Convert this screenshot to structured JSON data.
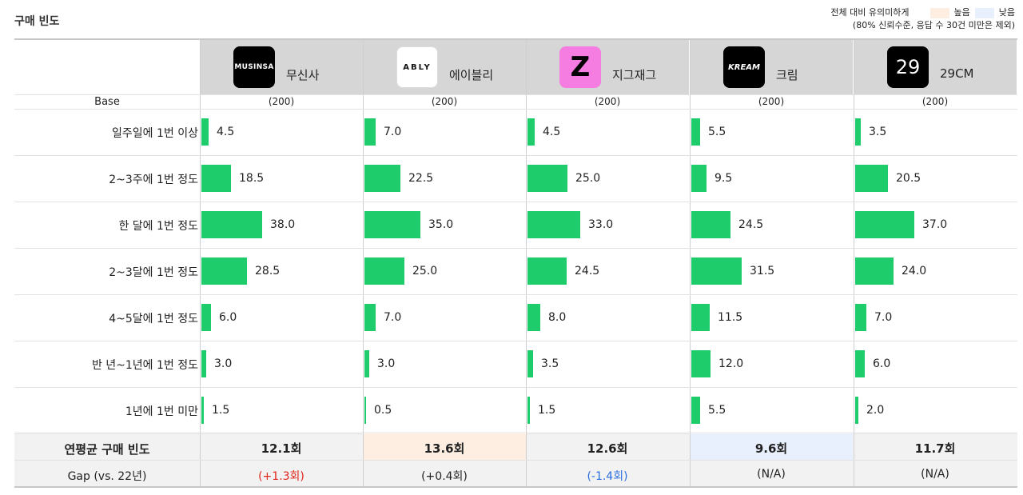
{
  "title": "구매 빈도",
  "legend": {
    "label": "전체 대비 유의미하게",
    "high_label": "높음",
    "low_label": "낮음",
    "note": "(80% 신뢰수준, 응답 수 30건 미만은 제외)",
    "high_color": "#fdeee1",
    "low_color": "#e8effd"
  },
  "brands": [
    {
      "logo_text": "MUSINSA",
      "logo_class": "musinsa",
      "name": "무신사",
      "base": "(200)"
    },
    {
      "logo_text": "ABLY",
      "logo_class": "ably",
      "name": "에이블리",
      "base": "(200)"
    },
    {
      "logo_text": "Z",
      "logo_class": "zig",
      "name": "지그재그",
      "base": "(200)"
    },
    {
      "logo_text": "KREAM",
      "logo_class": "kream",
      "name": "크림",
      "base": "(200)"
    },
    {
      "logo_text": "29",
      "logo_class": "cm29",
      "name": "29CM",
      "base": "(200)"
    }
  ],
  "base_label": "Base",
  "summary": {
    "label": "연평균 구매 빈도",
    "values": [
      "12.1회",
      "13.6회",
      "12.6회",
      "9.6회",
      "11.7회"
    ],
    "highlight": [
      "",
      "high",
      "",
      "low",
      ""
    ],
    "gap_label": "Gap (vs. 22년)",
    "gaps": [
      "(+1.3회)",
      "(+0.4회)",
      "(-1.4회)",
      "(N/A)",
      "(N/A)"
    ],
    "gap_style": [
      "up",
      "",
      "down",
      "",
      ""
    ]
  },
  "chart_data": {
    "type": "bar",
    "orientation": "horizontal",
    "bar_color": "#1fcc6c",
    "categories": [
      "일주일에 1번 이상",
      "2~3주에 1번 정도",
      "한 달에 1번 정도",
      "2~3달에 1번 정도",
      "4~5달에 1번 정도",
      "반 년~1년에 1번 정도",
      "1년에 1번 미만"
    ],
    "series": [
      {
        "name": "무신사",
        "values": [
          4.5,
          18.5,
          38.0,
          28.5,
          6.0,
          3.0,
          1.5
        ],
        "labels": [
          "4.5",
          "18.5",
          "38.0",
          "28.5",
          "6.0",
          "3.0",
          "1.5"
        ]
      },
      {
        "name": "에이블리",
        "values": [
          7.0,
          22.5,
          35.0,
          25.0,
          7.0,
          3.0,
          0.5
        ],
        "labels": [
          "7.0",
          "22.5",
          "35.0",
          "25.0",
          "7.0",
          "3.0",
          "0.5"
        ]
      },
      {
        "name": "지그재그",
        "values": [
          4.5,
          25.0,
          33.0,
          24.5,
          8.0,
          3.5,
          1.5
        ],
        "labels": [
          "4.5",
          "25.0",
          "33.0",
          "24.5",
          "8.0",
          "3.5",
          "1.5"
        ]
      },
      {
        "name": "크림",
        "values": [
          5.5,
          9.5,
          24.5,
          31.5,
          11.5,
          12.0,
          5.5
        ],
        "labels": [
          "5.5",
          "9.5",
          "24.5",
          "31.5",
          "11.5",
          "12.0",
          "5.5"
        ]
      },
      {
        "name": "29CM",
        "values": [
          3.5,
          20.5,
          37.0,
          24.0,
          7.0,
          6.0,
          2.0
        ],
        "labels": [
          "3.5",
          "20.5",
          "37.0",
          "24.0",
          "7.0",
          "6.0",
          "2.0"
        ]
      }
    ]
  }
}
